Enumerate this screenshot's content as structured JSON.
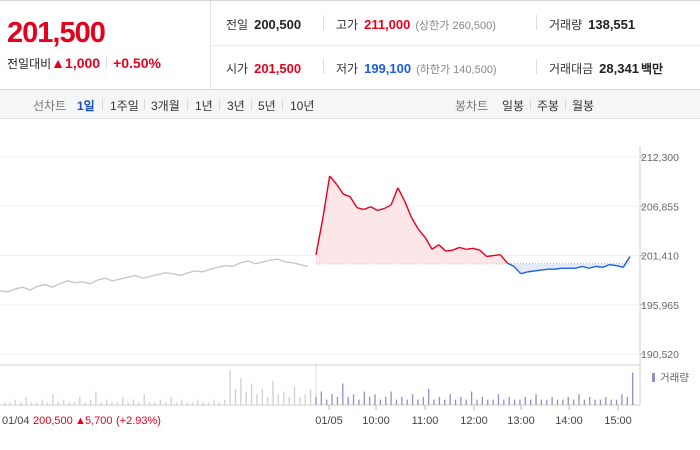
{
  "header": {
    "price": "201,500",
    "change_label": "전일대비",
    "change_amount": "1,000",
    "change_pct": "+0.50%",
    "prev_close": {
      "label": "전일",
      "value": "200,500"
    },
    "high": {
      "label": "고가",
      "value": "211,000",
      "limit": "(상한가 260,500)"
    },
    "volume": {
      "label": "거래량",
      "value": "138,551"
    },
    "open": {
      "label": "시가",
      "value": "201,500"
    },
    "low": {
      "label": "저가",
      "value": "199,100",
      "limit": "(하한가 140,500)"
    },
    "amount": {
      "label": "거래대금",
      "value": "28,341",
      "unit": "백만"
    }
  },
  "period_bar": {
    "line_label": "선차트",
    "line_options": [
      "1일",
      "1주일",
      "3개월",
      "1년",
      "3년",
      "5년",
      "10년"
    ],
    "line_selected": "1일",
    "candle_label": "봉차트",
    "candle_options": [
      "일봉",
      "주봉",
      "월봉"
    ]
  },
  "colors": {
    "up": "#e5001e",
    "down": "#1a5ee0",
    "prev_day_line": "#c8c8c8",
    "volume": "#9a8ac6"
  },
  "chart_data": {
    "type": "line",
    "y_ticks": [
      "212,300",
      "206,855",
      "201,410",
      "195,965",
      "190,520"
    ],
    "ylim": [
      190520,
      212300
    ],
    "baseline": 200500,
    "x_labels": [
      "01/05",
      "10:00",
      "11:00",
      "12:00",
      "13:00",
      "14:00",
      "15:00"
    ],
    "prev_day_label": "01/04",
    "prev_day_close": "200,500",
    "prev_day_change": "5,700",
    "prev_day_pct": "(+2.93%)",
    "volume_legend": "거래량",
    "series": [
      {
        "values": [
          197500,
          197400,
          197700,
          197900,
          197600,
          198000,
          198200,
          197900,
          198300,
          198600,
          198400,
          198500,
          198300,
          198700,
          198900,
          198600,
          198800,
          199000,
          199200,
          198900,
          199100,
          199300,
          199500,
          199400,
          199200,
          199500,
          199700,
          199600,
          199900,
          200100,
          200300,
          200200,
          200600,
          200800,
          200500,
          200700,
          200900,
          201000,
          200700,
          200600,
          200400,
          200200
        ]
      },
      {
        "values": [
          201500,
          205500,
          210200,
          209300,
          208200,
          207900,
          206700,
          206500,
          206800,
          206400,
          206600,
          207000,
          208900,
          207400,
          205600,
          204300,
          203400,
          202100,
          202600,
          201900,
          202000,
          202300,
          202100,
          202200,
          202000,
          201300,
          201400,
          201500,
          200600,
          200200,
          199400,
          199600,
          199700,
          199800,
          199900,
          199900,
          200000,
          200000,
          200000,
          200200,
          200000,
          200200,
          200100,
          200400,
          200300,
          200100,
          201300
        ]
      },
      {
        "values": [
          1,
          1,
          2,
          1,
          3,
          1,
          1,
          2,
          1,
          4,
          1,
          2,
          1,
          1,
          3,
          1,
          2,
          5,
          1,
          2,
          1,
          1,
          3,
          1,
          2,
          1,
          4,
          1,
          1,
          2,
          1,
          3,
          1,
          2,
          1,
          1,
          2,
          1,
          1,
          2,
          1,
          2,
          13,
          6,
          10,
          5,
          8,
          4,
          6,
          3,
          9,
          4,
          5,
          3,
          7,
          3,
          4,
          6,
          3,
          5,
          2,
          4,
          3,
          8,
          3,
          4,
          2,
          5,
          3,
          4,
          2,
          3,
          5,
          2,
          3,
          2,
          4,
          2,
          3,
          6,
          2,
          3,
          2,
          4,
          2,
          3,
          2,
          5,
          2,
          3,
          2,
          2,
          4,
          2,
          3,
          2,
          2,
          3,
          2,
          4,
          2,
          2,
          3,
          2,
          2,
          3,
          2,
          4,
          2,
          3,
          2,
          2,
          3,
          2,
          2,
          4,
          3,
          12
        ]
      }
    ]
  }
}
